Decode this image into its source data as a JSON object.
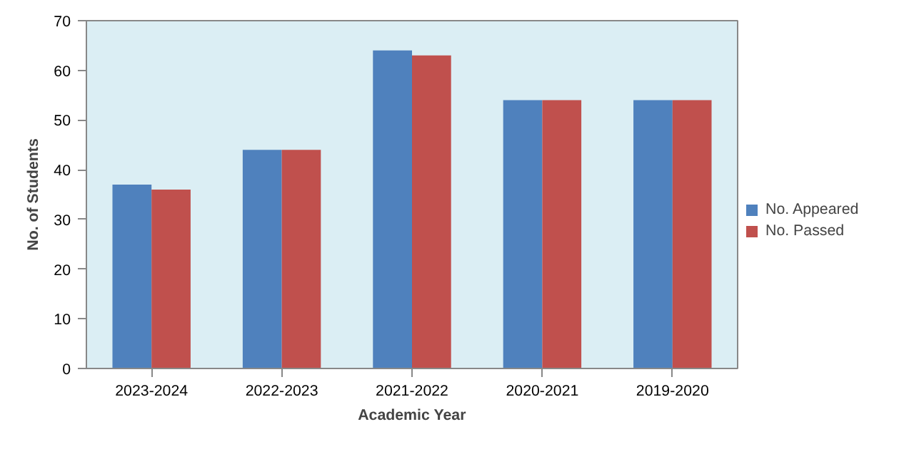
{
  "chart_data": {
    "type": "bar",
    "xlabel": "Academic Year",
    "ylabel": "No. of Students",
    "categories": [
      "2023-2024",
      "2022-2023",
      "2021-2022",
      "2020-2021",
      "2019-2020"
    ],
    "series": [
      {
        "name": "No. Appeared",
        "color": "#4f81bd",
        "values": [
          37,
          44,
          64,
          54,
          54
        ]
      },
      {
        "name": "No. Passed",
        "color": "#c0504d",
        "values": [
          36,
          44,
          63,
          54,
          54
        ]
      }
    ],
    "ylim": [
      0,
      70
    ],
    "yticks": [
      0,
      10,
      20,
      30,
      40,
      50,
      60,
      70
    ],
    "grid": false,
    "legend": "right"
  }
}
